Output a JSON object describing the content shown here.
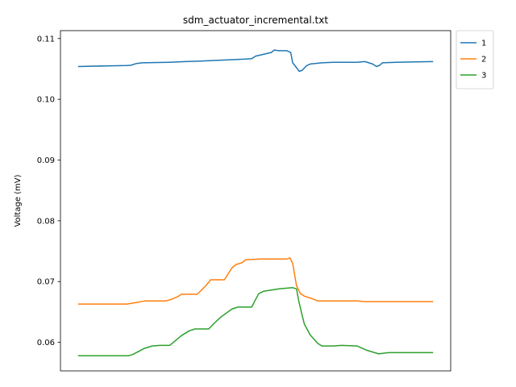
{
  "chart_data": {
    "type": "line",
    "title": "sdm_actuator_incremental.txt",
    "xlabel": "",
    "ylabel": "Voltage (mV)",
    "ylim": [
      0.0553,
      0.1113
    ],
    "xlim": [
      0,
      1000
    ],
    "yticks": [
      0.06,
      0.07,
      0.08,
      0.09,
      0.1,
      0.11
    ],
    "ytick_labels": [
      "0.06",
      "0.07",
      "0.08",
      "0.09",
      "0.10",
      "0.11"
    ],
    "x_tick_labels_shown": false,
    "grid": false,
    "legend_position": "outside-top-right",
    "series": [
      {
        "name": "1",
        "color": "#1f77b4",
        "points": [
          [
            45,
            0.1054
          ],
          [
            120,
            0.1055
          ],
          [
            170,
            0.10555
          ],
          [
            180,
            0.1056
          ],
          [
            195,
            0.1059
          ],
          [
            210,
            0.106
          ],
          [
            280,
            0.1061
          ],
          [
            320,
            0.1062
          ],
          [
            360,
            0.1063
          ],
          [
            430,
            0.1065
          ],
          [
            470,
            0.1066
          ],
          [
            490,
            0.1067
          ],
          [
            500,
            0.1071
          ],
          [
            520,
            0.1074
          ],
          [
            540,
            0.1077
          ],
          [
            548,
            0.1081
          ],
          [
            560,
            0.108
          ],
          [
            580,
            0.108
          ],
          [
            590,
            0.1077
          ],
          [
            595,
            0.106
          ],
          [
            605,
            0.1052
          ],
          [
            612,
            0.1046
          ],
          [
            620,
            0.1048
          ],
          [
            630,
            0.1055
          ],
          [
            640,
            0.1058
          ],
          [
            670,
            0.106
          ],
          [
            700,
            0.1061
          ],
          [
            760,
            0.1061
          ],
          [
            780,
            0.1062
          ],
          [
            790,
            0.106
          ],
          [
            800,
            0.1058
          ],
          [
            810,
            0.1054
          ],
          [
            818,
            0.1056
          ],
          [
            825,
            0.106
          ],
          [
            860,
            0.1061
          ],
          [
            955,
            0.1062
          ]
        ]
      },
      {
        "name": "2",
        "color": "#ff7f0e",
        "points": [
          [
            45,
            0.0663
          ],
          [
            170,
            0.0663
          ],
          [
            180,
            0.0664
          ],
          [
            200,
            0.0666
          ],
          [
            215,
            0.0668
          ],
          [
            270,
            0.0668
          ],
          [
            285,
            0.0671
          ],
          [
            300,
            0.0675
          ],
          [
            310,
            0.0679
          ],
          [
            350,
            0.0679
          ],
          [
            360,
            0.0685
          ],
          [
            375,
            0.0695
          ],
          [
            385,
            0.0703
          ],
          [
            420,
            0.0703
          ],
          [
            430,
            0.0713
          ],
          [
            440,
            0.0723
          ],
          [
            450,
            0.0728
          ],
          [
            465,
            0.0731
          ],
          [
            475,
            0.0736
          ],
          [
            515,
            0.0737
          ],
          [
            580,
            0.0737
          ],
          [
            588,
            0.0739
          ],
          [
            595,
            0.073
          ],
          [
            605,
            0.0693
          ],
          [
            615,
            0.068
          ],
          [
            625,
            0.0676
          ],
          [
            640,
            0.0673
          ],
          [
            660,
            0.0668
          ],
          [
            760,
            0.0668
          ],
          [
            780,
            0.0667
          ],
          [
            810,
            0.0667
          ],
          [
            955,
            0.0667
          ]
        ]
      },
      {
        "name": "3",
        "color": "#2ca02c",
        "points": [
          [
            45,
            0.0578
          ],
          [
            175,
            0.0578
          ],
          [
            185,
            0.058
          ],
          [
            200,
            0.0585
          ],
          [
            215,
            0.059
          ],
          [
            235,
            0.0594
          ],
          [
            255,
            0.0595
          ],
          [
            280,
            0.0595
          ],
          [
            295,
            0.0603
          ],
          [
            310,
            0.0611
          ],
          [
            330,
            0.0619
          ],
          [
            345,
            0.0622
          ],
          [
            380,
            0.0622
          ],
          [
            395,
            0.0632
          ],
          [
            410,
            0.0641
          ],
          [
            425,
            0.0648
          ],
          [
            440,
            0.0655
          ],
          [
            455,
            0.0658
          ],
          [
            490,
            0.0658
          ],
          [
            498,
            0.0668
          ],
          [
            508,
            0.068
          ],
          [
            520,
            0.0684
          ],
          [
            540,
            0.0686
          ],
          [
            560,
            0.0688
          ],
          [
            595,
            0.069
          ],
          [
            605,
            0.0688
          ],
          [
            610,
            0.067
          ],
          [
            618,
            0.0648
          ],
          [
            625,
            0.063
          ],
          [
            640,
            0.0612
          ],
          [
            660,
            0.0598
          ],
          [
            670,
            0.0594
          ],
          [
            700,
            0.0594
          ],
          [
            720,
            0.0595
          ],
          [
            760,
            0.0594
          ],
          [
            785,
            0.0587
          ],
          [
            800,
            0.0584
          ],
          [
            815,
            0.0581
          ],
          [
            828,
            0.0582
          ],
          [
            840,
            0.0583
          ],
          [
            955,
            0.0583
          ]
        ]
      }
    ]
  }
}
